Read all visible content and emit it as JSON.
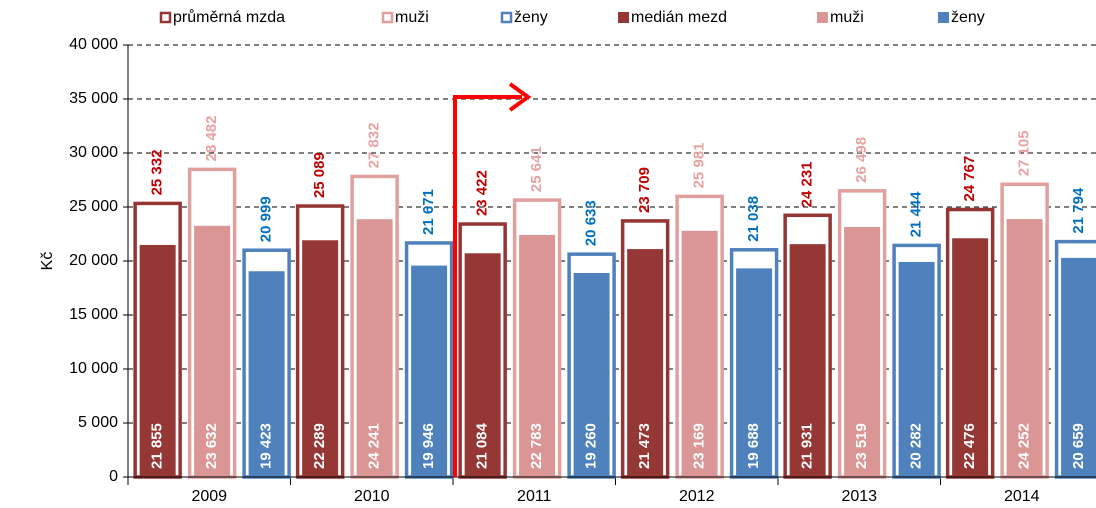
{
  "chart_data": {
    "type": "bar",
    "y_label": "Kč",
    "categories": [
      "2009",
      "2010",
      "2011",
      "2012",
      "2013",
      "2014"
    ],
    "ylim": [
      0,
      40000
    ],
    "yticks": [
      0,
      {
        "value": 5000,
        "label": "5 000"
      },
      {
        "value": 10000,
        "label": "10 000"
      },
      {
        "value": 15000,
        "label": "15 000"
      },
      {
        "value": 20000,
        "label": "20 000"
      },
      {
        "value": 25000,
        "label": "25 000"
      },
      {
        "value": 30000,
        "label": "30 000"
      },
      {
        "value": 35000,
        "label": "35 000"
      },
      {
        "value": 40000,
        "label": "40 000"
      }
    ],
    "grid": true,
    "series": [
      {
        "name": "průměrná mzda",
        "style": "outline",
        "color": "#943634",
        "label_color": "#c00000",
        "slot": 0,
        "values": [
          25332,
          25089,
          23422,
          23709,
          24231,
          24767
        ],
        "value_labels": [
          "25 332",
          "25 089",
          "23 422",
          "23 709",
          "24 231",
          "24 767"
        ]
      },
      {
        "name": "muži",
        "style": "outline",
        "color": "#e0a09e",
        "label_color": "#e6a3a1",
        "slot": 1,
        "values": [
          28482,
          27832,
          25641,
          25981,
          26498,
          27105
        ],
        "value_labels": [
          "28 482",
          "27 832",
          "25 641",
          "25 981",
          "26 498",
          "27 105"
        ]
      },
      {
        "name": "ženy",
        "style": "outline",
        "color": "#4f81bd",
        "label_color": "#0070c0",
        "slot": 2,
        "values": [
          20999,
          21671,
          20633,
          21038,
          21444,
          21794
        ],
        "value_labels": [
          "20 999",
          "21 671",
          "20 633",
          "21 038",
          "21 444",
          "21 794"
        ]
      },
      {
        "name": "medián mezd",
        "style": "filled",
        "color": "#953735",
        "label_color": "#ffffff",
        "slot": 0,
        "values": [
          21855,
          22289,
          21084,
          21473,
          21931,
          22476
        ],
        "value_labels": [
          "21 855",
          "22 289",
          "21 084",
          "21 473",
          "21 931",
          "22 476"
        ]
      },
      {
        "name": "muži",
        "style": "filled",
        "color": "#d99694",
        "label_color": "#ffffff",
        "slot": 1,
        "values": [
          23632,
          24241,
          22783,
          23169,
          23519,
          24252
        ],
        "value_labels": [
          "23 632",
          "24 241",
          "22 783",
          "23 169",
          "23 519",
          "24 252"
        ]
      },
      {
        "name": "ženy",
        "style": "filled",
        "color": "#4f81bd",
        "label_color": "#ffffff",
        "slot": 2,
        "values": [
          19423,
          19946,
          19260,
          19688,
          20282,
          20659
        ],
        "value_labels": [
          "19 423",
          "19 946",
          "19 260",
          "19 688",
          "20 282",
          "20 659"
        ]
      }
    ]
  }
}
